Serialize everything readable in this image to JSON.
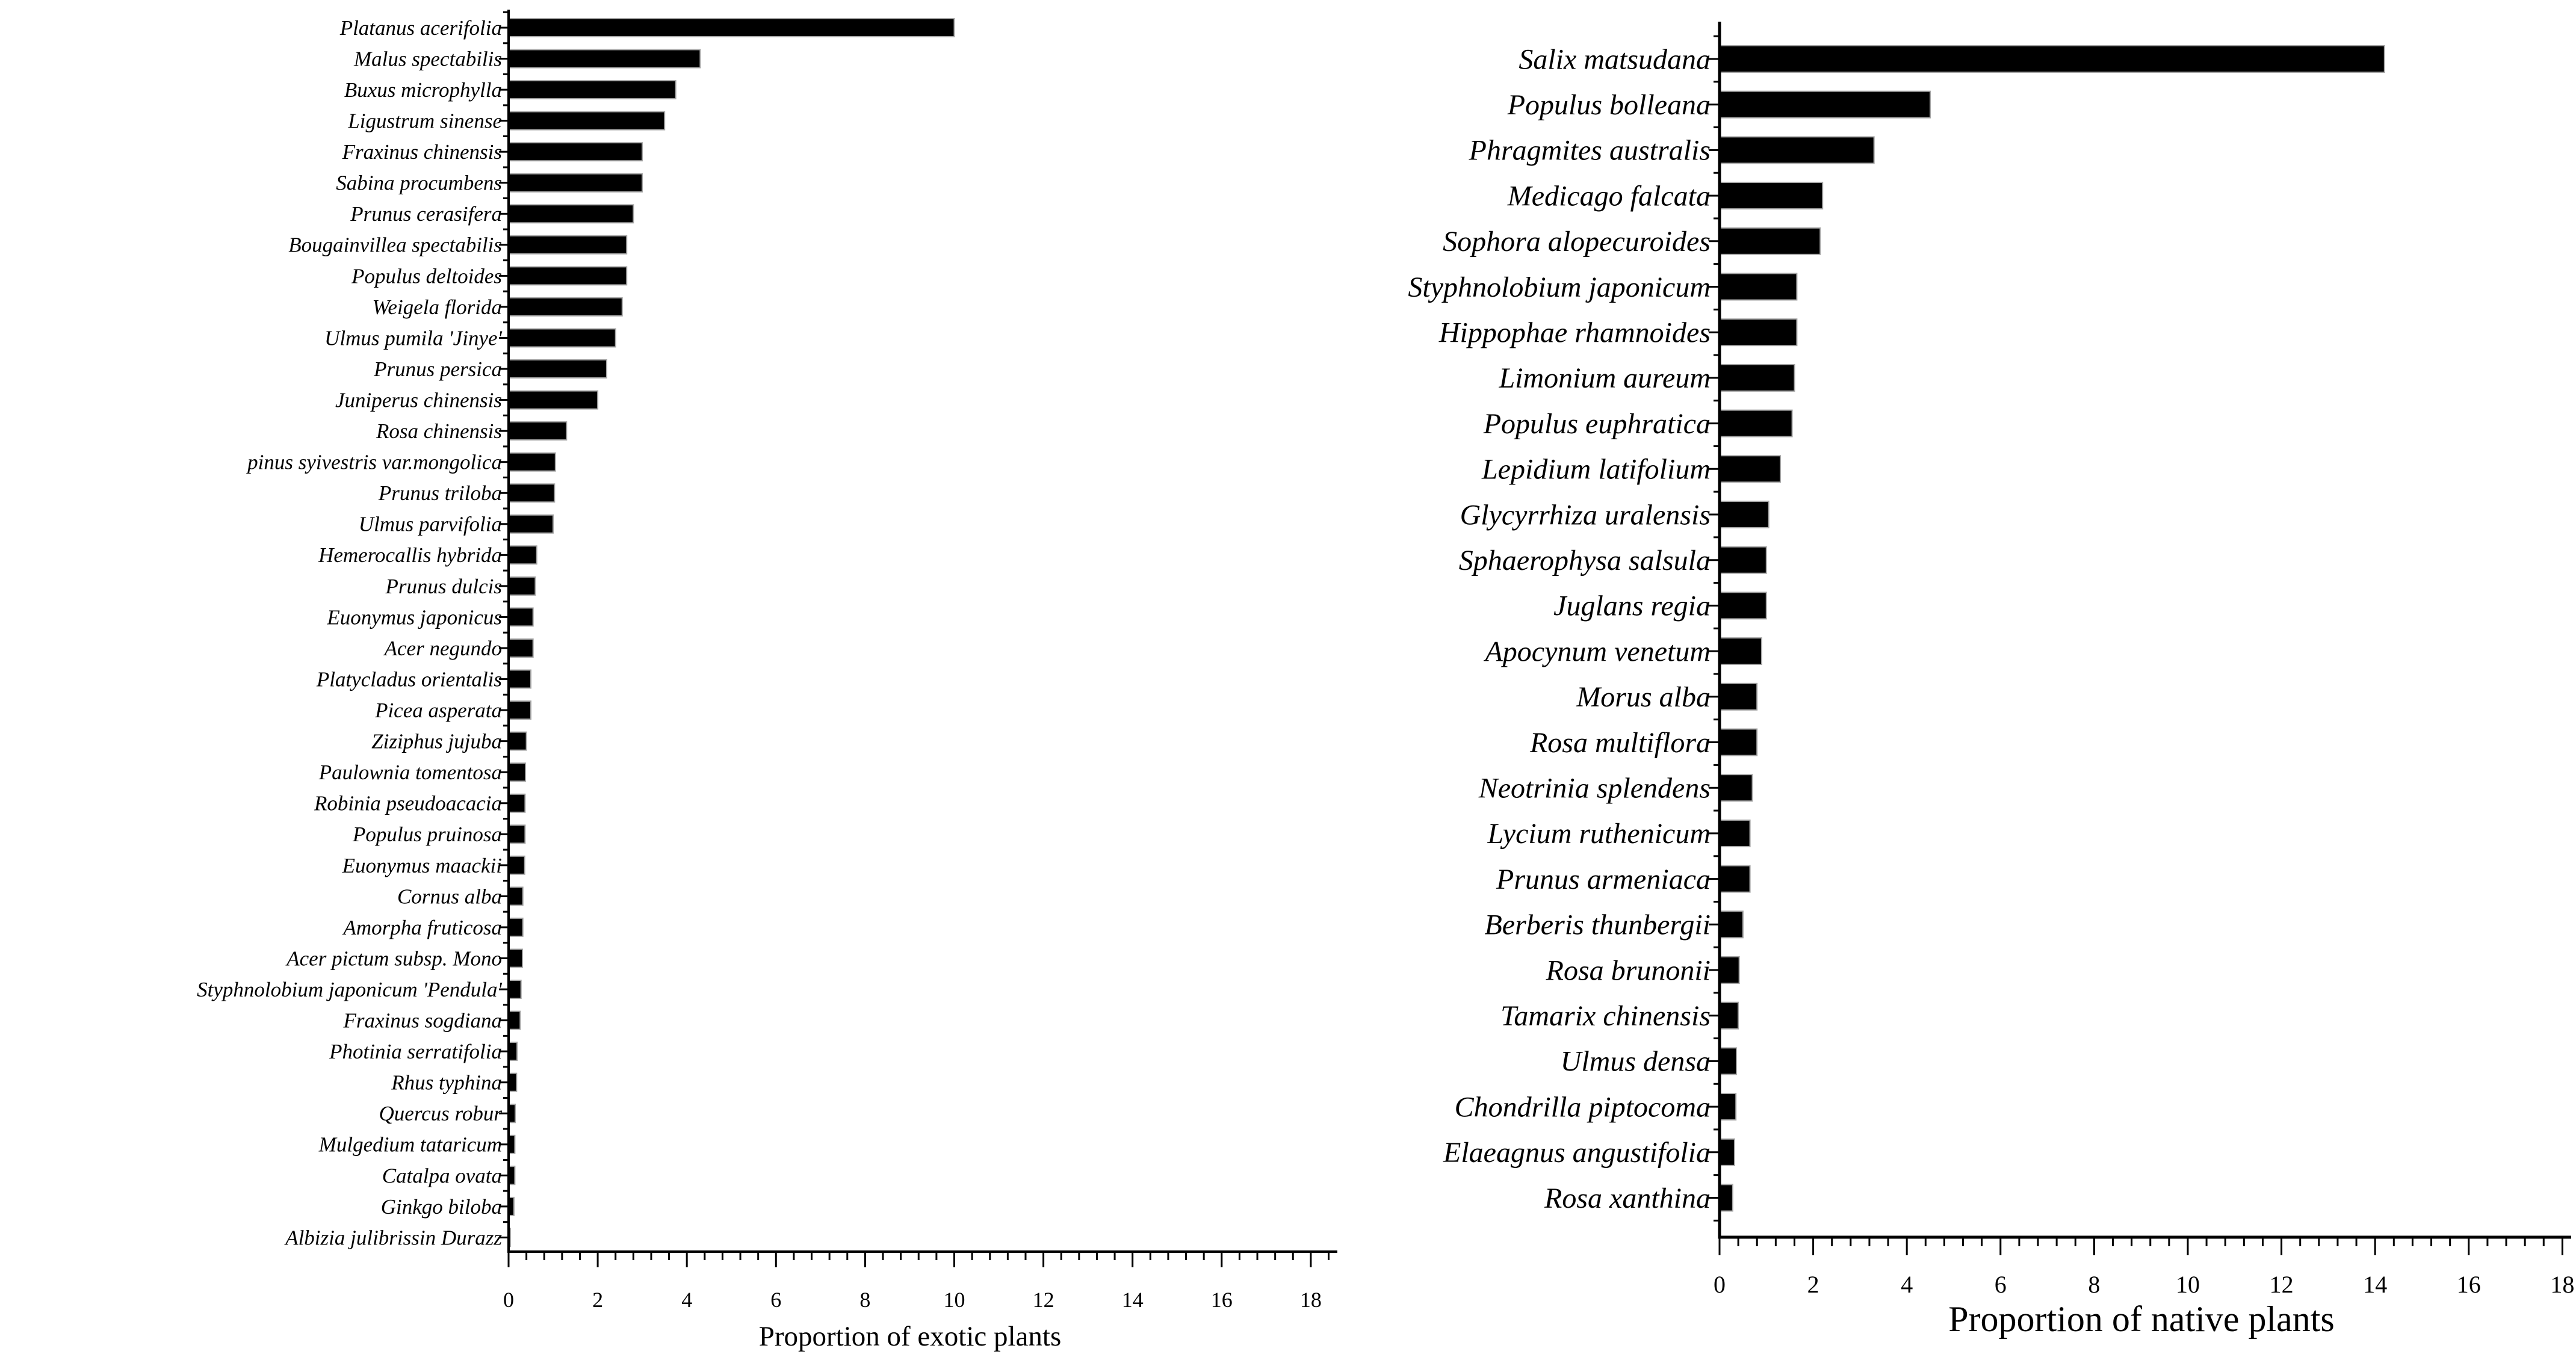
{
  "page": {
    "background": "#ffffff",
    "text_color": "#000000",
    "axis_color": "#000000"
  },
  "chart_data": [
    {
      "type": "bar",
      "orientation": "horizontal",
      "title": "",
      "xlabel": "Proportion of exotic plants",
      "ylabel": "",
      "xlim": [
        0,
        18
      ],
      "x_major_ticks": [
        0,
        2,
        4,
        6,
        8,
        10,
        12,
        14,
        16,
        18
      ],
      "x_minor_step": 0.4,
      "grid": false,
      "legend": false,
      "bar_color": "#000000",
      "categories": [
        "Platanus acerifolia",
        "Malus spectabilis",
        "Buxus microphylla",
        "Ligustrum sinense",
        "Fraxinus chinensis",
        "Sabina procumbens",
        "Prunus cerasifera",
        "Bougainvillea spectabilis",
        "Populus deltoides",
        "Weigela florida",
        "Ulmus pumila 'Jinye'",
        "Prunus persica",
        "Juniperus chinensis",
        "Rosa chinensis",
        "pinus syivestris var.mongolica",
        "Prunus triloba",
        "Ulmus parvifolia",
        "Hemerocallis hybrida",
        "Prunus dulcis",
        "Euonymus japonicus",
        "Acer negundo",
        "Platycladus orientalis",
        "Picea asperata",
        "Ziziphus jujuba",
        "Paulownia tomentosa",
        "Robinia pseudoacacia",
        "Populus pruinosa",
        "Euonymus maackii",
        "Cornus alba",
        "Amorpha fruticosa",
        "Acer pictum subsp. Mono",
        "Styphnolobium japonicum 'Pendula'",
        "Fraxinus sogdiana",
        "Photinia serratifolia",
        "Rhus typhina",
        "Quercus robur",
        "Mulgedium tataricum",
        "Catalpa ovata",
        "Ginkgo biloba",
        "Albizia julibrissin Durazz"
      ],
      "values": [
        10.0,
        4.3,
        3.75,
        3.5,
        3.0,
        3.0,
        2.8,
        2.65,
        2.65,
        2.55,
        2.4,
        2.2,
        2.0,
        1.3,
        1.05,
        1.03,
        1.0,
        0.63,
        0.6,
        0.55,
        0.55,
        0.5,
        0.5,
        0.4,
        0.38,
        0.37,
        0.37,
        0.36,
        0.32,
        0.32,
        0.31,
        0.28,
        0.26,
        0.19,
        0.18,
        0.15,
        0.14,
        0.14,
        0.12,
        0.04
      ]
    },
    {
      "type": "bar",
      "orientation": "horizontal",
      "title": "",
      "xlabel": "Proportion of native plants",
      "ylabel": "",
      "xlim": [
        0,
        18
      ],
      "x_major_ticks": [
        0,
        2,
        4,
        6,
        8,
        10,
        12,
        14,
        16,
        18
      ],
      "x_minor_step": 0.4,
      "grid": false,
      "legend": false,
      "bar_color": "#000000",
      "categories": [
        "Salix matsudana",
        "Populus bolleana",
        "Phragmites australis",
        "Medicago falcata",
        "Sophora alopecuroides",
        "Styphnolobium japonicum",
        "Hippophae rhamnoides",
        "Limonium aureum",
        "Populus euphratica",
        "Lepidium latifolium",
        "Glycyrrhiza uralensis",
        "Sphaerophysa salsula",
        "Juglans regia",
        "Apocynum venetum",
        "Morus alba",
        "Rosa multiflora",
        "Neotrinia splendens",
        "Lycium ruthenicum",
        "Prunus armeniaca",
        "Berberis thunbergii",
        "Rosa brunonii",
        "Tamarix chinensis",
        "Ulmus densa",
        "Chondrilla piptocoma",
        "Elaeagnus angustifolia",
        "Rosa xanthina"
      ],
      "values": [
        14.2,
        4.5,
        3.3,
        2.2,
        2.15,
        1.65,
        1.65,
        1.6,
        1.55,
        1.3,
        1.05,
        1.0,
        1.0,
        0.9,
        0.8,
        0.8,
        0.7,
        0.65,
        0.65,
        0.5,
        0.42,
        0.4,
        0.36,
        0.35,
        0.32,
        0.28
      ]
    }
  ]
}
